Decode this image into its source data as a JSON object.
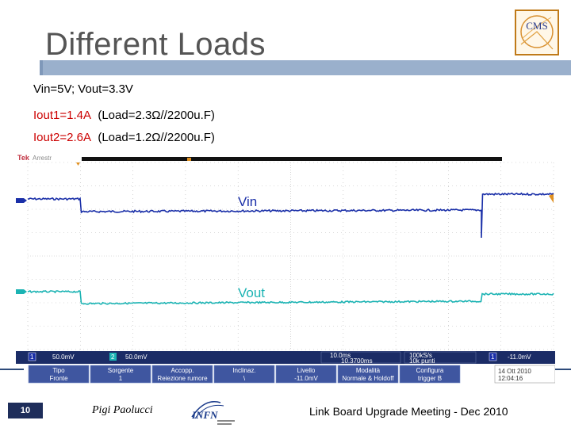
{
  "slide": {
    "title": "Different Loads",
    "line1": "Vin=5V; Vout=3.3V",
    "line2_red": "Iout1=1.4A",
    "line2_rest": "(Load=2.3Ω//2200u.F)",
    "line3_red": "Iout2=2.6A",
    "line3_rest": "(Load=1.2Ω//2200u.F)"
  },
  "scope": {
    "brand": "Tek",
    "status": "Arrestr",
    "labels": {
      "vin": "Vin",
      "vout": "Vout"
    },
    "readouts": {
      "ch1": "50.0mV",
      "ch2": "50.0mV",
      "timebase": "10.0ms",
      "samples": "100kS/s",
      "points": "10k punti",
      "delay": "10.3700ms",
      "trigger": "-11.0mV"
    },
    "menu": [
      {
        "line1": "Tipo",
        "line2": "Fronte"
      },
      {
        "line1": "Sorgente",
        "line2": "1"
      },
      {
        "line1": "Accopp.",
        "line2": "Reiezione rumore"
      },
      {
        "line1": "Inclinaz.",
        "line2": "\\"
      },
      {
        "line1": "Livello",
        "line2": "-11.0mV"
      },
      {
        "line1": "Modalità",
        "line2": "Normale & Holdoff"
      },
      {
        "line1": "Configura",
        "line2": "trigger B"
      }
    ],
    "date": "14 Ott 2010",
    "time": "12:04:16",
    "colors": {
      "ch1": "#1a2fa8",
      "ch2": "#1bb3b3",
      "grid": "#b8b8b8"
    }
  },
  "footer": {
    "page_number": "10",
    "author": "Pigi Paolucci",
    "logo_text": "INFN",
    "meeting": "Link Board Upgrade Meeting - Dec 2010"
  },
  "logos": {
    "cms": "CMS",
    "infn": "INFN"
  }
}
